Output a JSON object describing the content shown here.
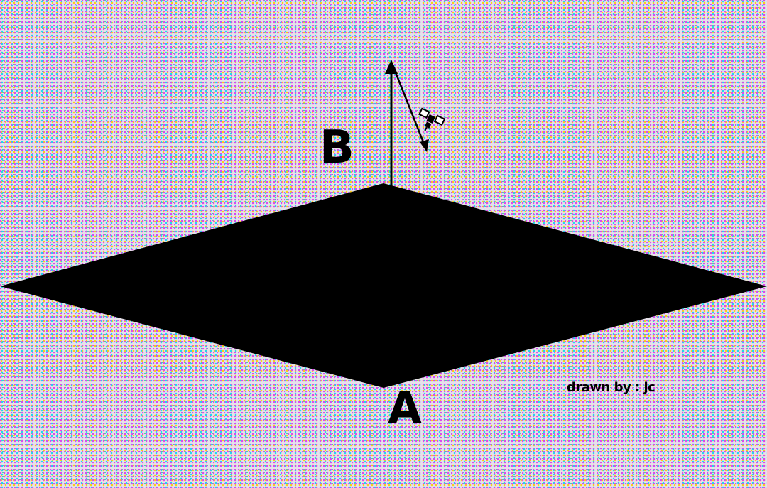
{
  "labels": {
    "point_a": "A",
    "point_b": "B",
    "credit": "drawn by : jc"
  },
  "colors": {
    "plane_fill": "#000000",
    "line_color": "#000000",
    "background_noise": [
      "#d946ef",
      "#22d3ee",
      "#facc15",
      "#34d399"
    ]
  },
  "icons": {
    "satellite": "satellite-icon"
  }
}
